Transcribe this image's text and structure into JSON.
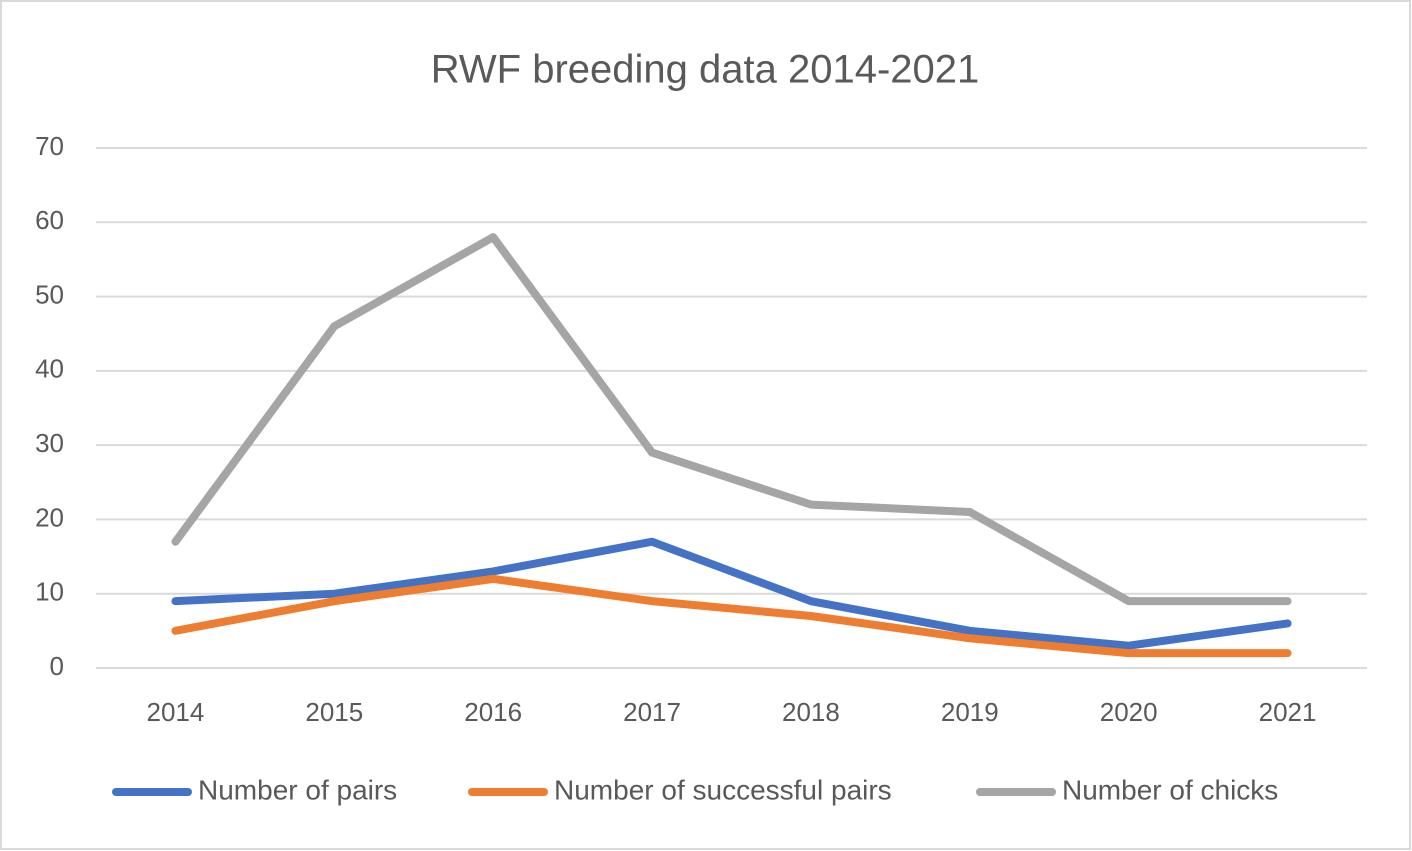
{
  "chart_data": {
    "type": "line",
    "title": "RWF breeding data 2014-2021",
    "categories": [
      "2014",
      "2015",
      "2016",
      "2017",
      "2018",
      "2019",
      "2020",
      "2021"
    ],
    "series": [
      {
        "name": "Number of pairs",
        "color": "#4472c4",
        "values": [
          9,
          10,
          13,
          17,
          9,
          5,
          3,
          6
        ]
      },
      {
        "name": "Number of successful pairs",
        "color": "#ed7d31",
        "values": [
          5,
          9,
          12,
          9,
          7,
          4,
          2,
          2
        ]
      },
      {
        "name": "Number of chicks",
        "color": "#a5a5a5",
        "values": [
          17,
          46,
          58,
          29,
          22,
          21,
          9,
          9
        ]
      }
    ],
    "ylim": [
      0,
      70
    ],
    "yticks": [
      0,
      10,
      20,
      30,
      40,
      50,
      60,
      70
    ],
    "grid": true,
    "legend": "bottom"
  }
}
